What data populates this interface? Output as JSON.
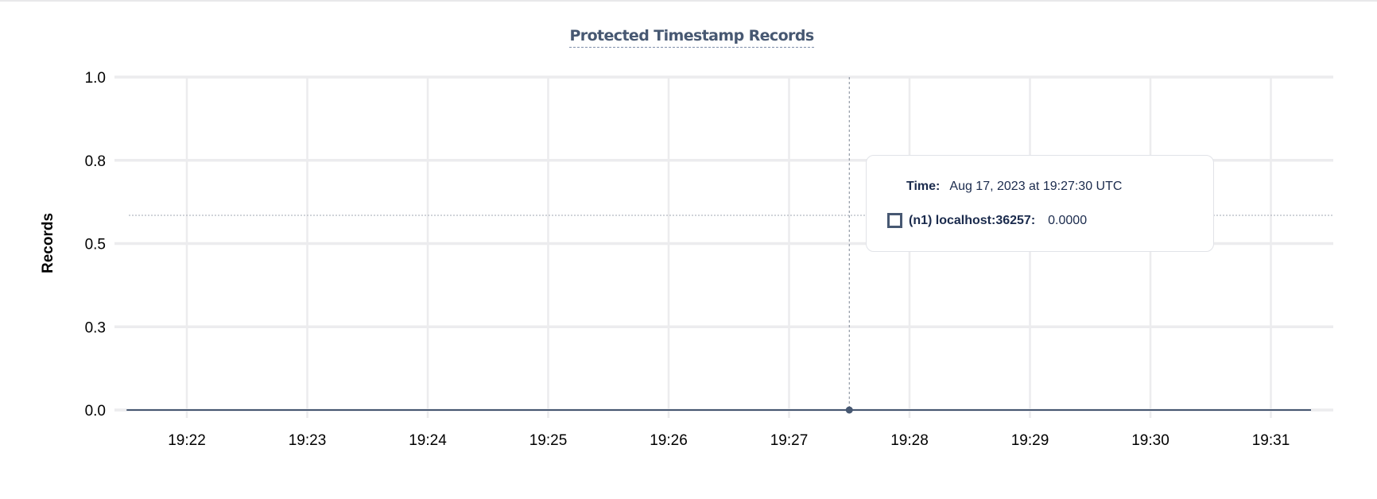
{
  "chart_data": {
    "type": "line",
    "title": "Protected Timestamp Records",
    "ylabel": "Records",
    "xlabel": "",
    "ylim": [
      0,
      1
    ],
    "yticks": [
      0,
      0.25,
      0.5,
      0.75,
      1
    ],
    "ytick_labels": [
      "0.0",
      "0.3",
      "0.5",
      "0.8",
      "1.0"
    ],
    "xlim": [
      "19:21:30",
      "19:31:20"
    ],
    "xticks": [
      "19:22",
      "19:23",
      "19:24",
      "19:25",
      "19:26",
      "19:27",
      "19:28",
      "19:29",
      "19:30",
      "19:31"
    ],
    "grid": true,
    "series": [
      {
        "name": "(n1) localhost:36257",
        "color": "#475872",
        "x": [
          "19:21:30",
          "19:27:30",
          "19:31:20"
        ],
        "values": [
          0,
          0,
          0
        ]
      }
    ],
    "hover": {
      "x": "19:27:30",
      "value": 0
    }
  },
  "tooltip": {
    "time_label": "Time:",
    "time_value": "Aug 17, 2023 at 19:27:30 UTC",
    "series_label": "(n1) localhost:36257:",
    "series_value": "0.0000"
  }
}
